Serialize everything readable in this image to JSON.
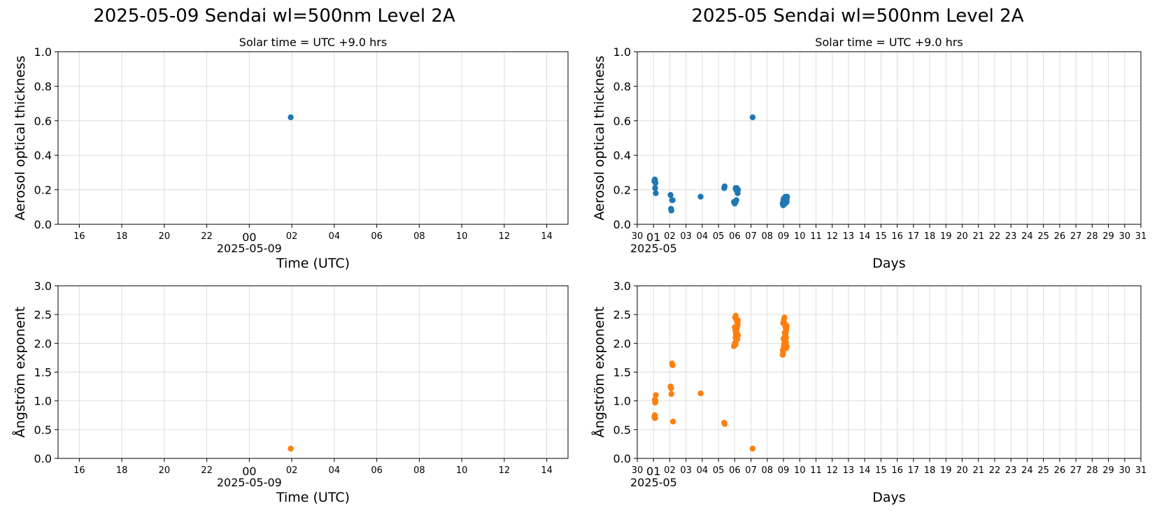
{
  "titles": {
    "left": "2025-05-09  Sendai  wl=500nm  Level 2A",
    "right": "2025-05  Sendai  wl=500nm  Level 2A"
  },
  "subtitle": "Solar time = UTC +9.0 hrs",
  "colors": {
    "aot": "#1f77b4",
    "angstrom": "#ff7f0e",
    "grid": "#dddddd"
  },
  "chart_data": [
    {
      "id": "daily-aot",
      "type": "scatter",
      "subtitle": "Solar time = UTC +9.0 hrs",
      "xlabel": "Time (UTC)",
      "ylabel": "Aerosol optical thickness",
      "xlim": [
        15.0,
        39.0
      ],
      "ylim": [
        0.0,
        1.0
      ],
      "xticks": [
        16,
        18,
        20,
        22,
        24,
        26,
        28,
        30,
        32,
        34,
        36,
        38
      ],
      "xticklabels": [
        "16",
        "18",
        "20",
        "22",
        "00",
        "02",
        "04",
        "06",
        "08",
        "10",
        "12",
        "14"
      ],
      "xsubticklabel": "2025-05-09",
      "yticks": [
        "0.0",
        "0.2",
        "0.4",
        "0.6",
        "0.8",
        "1.0"
      ],
      "grid": true,
      "series": [
        {
          "color": "#1f77b4",
          "x": [
            25.95
          ],
          "y": [
            0.62
          ]
        }
      ]
    },
    {
      "id": "monthly-aot",
      "type": "scatter",
      "subtitle": "Solar time = UTC +9.0 hrs",
      "xlabel": "Days",
      "ylabel": "Aerosol optical thickness",
      "xlim": [
        30,
        61
      ],
      "ylim": [
        0.0,
        1.0
      ],
      "xticks": [
        30,
        31,
        32,
        33,
        34,
        35,
        36,
        37,
        38,
        39,
        40,
        41,
        42,
        43,
        44,
        45,
        46,
        47,
        48,
        49,
        50,
        51,
        52,
        53,
        54,
        55,
        56,
        57,
        58,
        59,
        60,
        61
      ],
      "xticklabels": [
        "30",
        "01",
        "02",
        "03",
        "04",
        "05",
        "06",
        "07",
        "08",
        "09",
        "10",
        "11",
        "12",
        "13",
        "14",
        "15",
        "16",
        "17",
        "18",
        "19",
        "20",
        "21",
        "22",
        "23",
        "24",
        "25",
        "26",
        "27",
        "28",
        "29",
        "30",
        "31"
      ],
      "xsubticklabel": "2025-05",
      "yticks": [
        "0.0",
        "0.2",
        "0.4",
        "0.6",
        "0.8",
        "1.0"
      ],
      "grid": true,
      "series": [
        {
          "color": "#1f77b4",
          "x": [
            31.05,
            31.08,
            31.1,
            31.12,
            31.1,
            31.14,
            32.05,
            32.08,
            32.1,
            32.14,
            32.18,
            33.9,
            35.35,
            35.38,
            35.95,
            36.0,
            36.05,
            36.08,
            36.12,
            36.15,
            36.18,
            36.2,
            36.1,
            36.05,
            37.1,
            38.95,
            38.98,
            39.0,
            39.02,
            39.05,
            39.08,
            39.1,
            39.12,
            39.15,
            39.18,
            39.2,
            39.22,
            38.98,
            39.02,
            39.06,
            39.1,
            39.14,
            39.18,
            39.0,
            39.05,
            39.1,
            39.15,
            39.2,
            39.08,
            39.12
          ],
          "y": [
            0.25,
            0.26,
            0.25,
            0.24,
            0.21,
            0.18,
            0.17,
            0.09,
            0.08,
            0.14,
            0.14,
            0.16,
            0.21,
            0.22,
            0.13,
            0.12,
            0.13,
            0.2,
            0.21,
            0.19,
            0.18,
            0.2,
            0.14,
            0.21,
            0.62,
            0.12,
            0.13,
            0.14,
            0.15,
            0.12,
            0.13,
            0.14,
            0.15,
            0.15,
            0.14,
            0.15,
            0.16,
            0.11,
            0.12,
            0.13,
            0.14,
            0.15,
            0.13,
            0.14,
            0.15,
            0.12,
            0.14,
            0.13,
            0.12,
            0.16
          ]
        }
      ]
    },
    {
      "id": "daily-angstrom",
      "type": "scatter",
      "xlabel": "Time (UTC)",
      "ylabel": "Ångström exponent",
      "xlim": [
        15.0,
        39.0
      ],
      "ylim": [
        0.0,
        3.0
      ],
      "xticks": [
        16,
        18,
        20,
        22,
        24,
        26,
        28,
        30,
        32,
        34,
        36,
        38
      ],
      "xticklabels": [
        "16",
        "18",
        "20",
        "22",
        "00",
        "02",
        "04",
        "06",
        "08",
        "10",
        "12",
        "14"
      ],
      "xsubticklabel": "2025-05-09",
      "yticks": [
        "0.0",
        "0.5",
        "1.0",
        "1.5",
        "2.0",
        "2.5",
        "3.0"
      ],
      "grid": true,
      "series": [
        {
          "color": "#ff7f0e",
          "x": [
            25.95
          ],
          "y": [
            0.17
          ]
        }
      ]
    },
    {
      "id": "monthly-angstrom",
      "type": "scatter",
      "xlabel": "Days",
      "ylabel": "Ångström exponent",
      "xlim": [
        30,
        61
      ],
      "ylim": [
        0.0,
        3.0
      ],
      "xticks": [
        30,
        31,
        32,
        33,
        34,
        35,
        36,
        37,
        38,
        39,
        40,
        41,
        42,
        43,
        44,
        45,
        46,
        47,
        48,
        49,
        50,
        51,
        52,
        53,
        54,
        55,
        56,
        57,
        58,
        59,
        60,
        61
      ],
      "xticklabels": [
        "30",
        "01",
        "02",
        "03",
        "04",
        "05",
        "06",
        "07",
        "08",
        "09",
        "10",
        "11",
        "12",
        "13",
        "14",
        "15",
        "16",
        "17",
        "18",
        "19",
        "20",
        "21",
        "22",
        "23",
        "24",
        "25",
        "26",
        "27",
        "28",
        "29",
        "30",
        "31"
      ],
      "xsubticklabel": "2025-05",
      "yticks": [
        "0.0",
        "0.5",
        "1.0",
        "1.5",
        "2.0",
        "2.5",
        "3.0"
      ],
      "grid": true,
      "series": [
        {
          "color": "#ff7f0e",
          "x": [
            31.05,
            31.08,
            31.1,
            31.12,
            31.14,
            31.1,
            31.08,
            32.05,
            32.08,
            32.1,
            32.14,
            32.18,
            32.2,
            33.9,
            35.35,
            35.38,
            35.95,
            36.0,
            36.05,
            36.08,
            36.1,
            36.12,
            36.15,
            36.18,
            36.2,
            36.02,
            36.06,
            36.1,
            36.14,
            36.18,
            36.0,
            36.04,
            36.08,
            36.12,
            36.16,
            36.2,
            36.05,
            36.1,
            36.15,
            36.08,
            37.1,
            38.95,
            38.98,
            39.0,
            39.02,
            39.05,
            39.08,
            39.1,
            39.12,
            39.15,
            39.18,
            39.2,
            38.98,
            39.02,
            39.06,
            39.1,
            39.14,
            39.18,
            39.0,
            39.05,
            39.1,
            39.15,
            39.2,
            39.08,
            39.12,
            38.96,
            39.04,
            39.12,
            39.16
          ],
          "y": [
            0.72,
            0.75,
            0.7,
            1.0,
            1.1,
            0.97,
            1.02,
            1.25,
            1.22,
            1.12,
            1.65,
            1.62,
            0.64,
            1.13,
            0.62,
            0.6,
            1.95,
            2.0,
            2.1,
            2.15,
            2.2,
            2.25,
            2.3,
            2.35,
            2.4,
            2.45,
            2.48,
            2.42,
            2.38,
            2.32,
            2.28,
            2.22,
            2.18,
            2.12,
            2.08,
            2.14,
            1.98,
            2.05,
            2.16,
            2.27,
            0.17,
            1.8,
            1.85,
            1.9,
            1.95,
            2.0,
            2.05,
            2.1,
            2.15,
            2.2,
            2.25,
            2.3,
            2.35,
            2.4,
            2.45,
            2.2,
            2.0,
            1.92,
            2.08,
            1.98,
            2.12,
            2.02,
            1.94,
            2.18,
            2.28,
            1.88,
            2.06,
            2.33,
            2.1
          ]
        }
      ]
    }
  ]
}
